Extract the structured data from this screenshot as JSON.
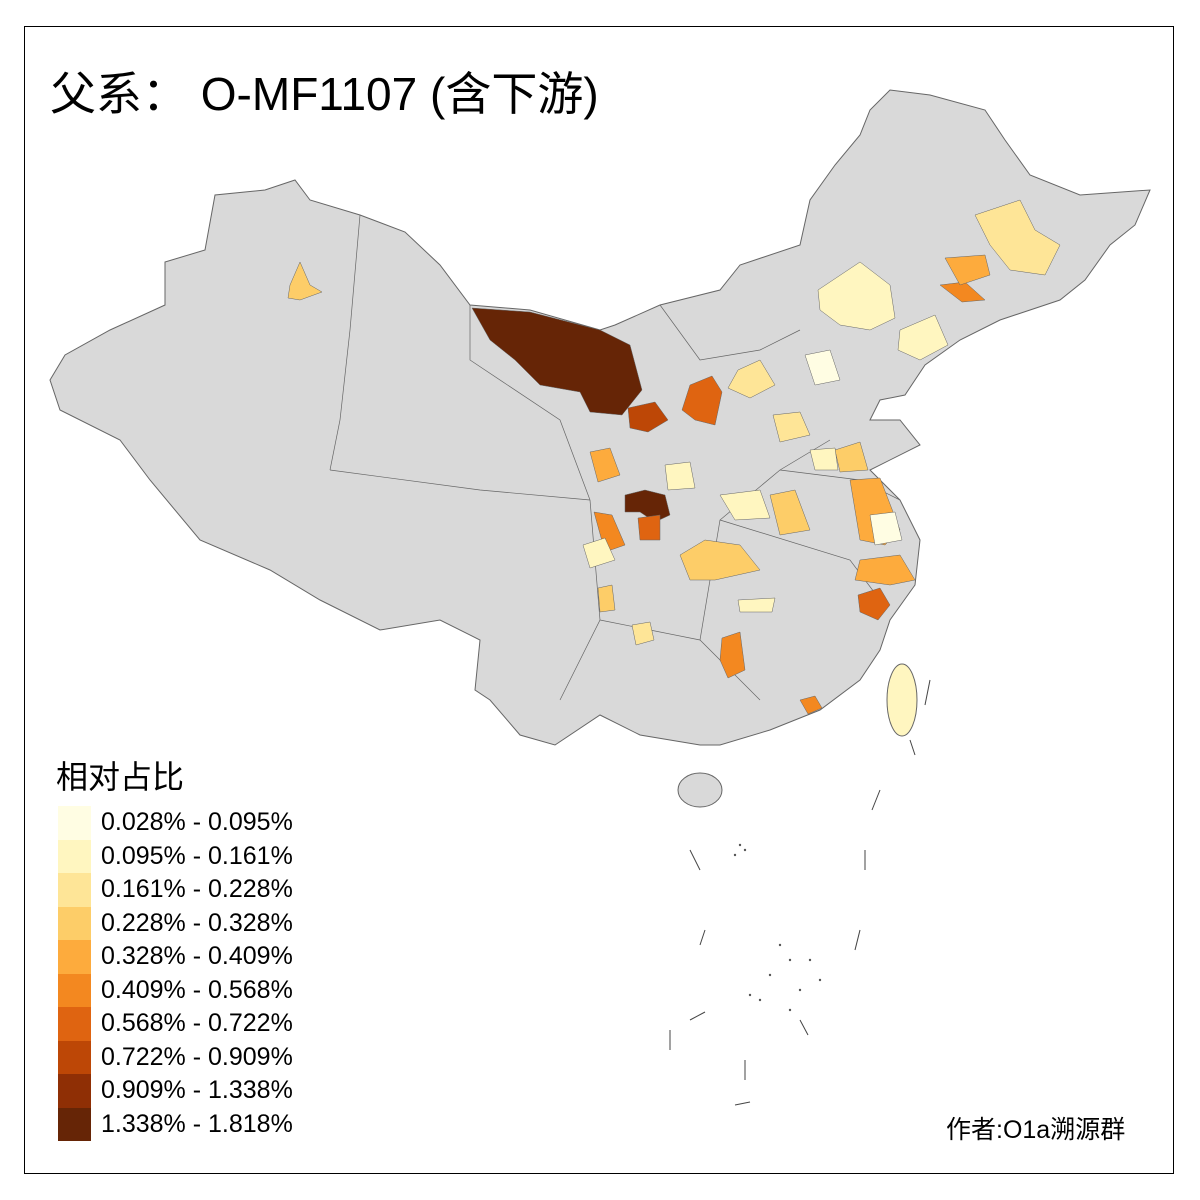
{
  "title": "父系： O-MF1107 (含下游)",
  "legend": {
    "title": "相对占比",
    "bins": [
      {
        "label": "0.028% - 0.095%",
        "color": "#fffde3"
      },
      {
        "label": "0.095% - 0.161%",
        "color": "#fff6c0"
      },
      {
        "label": "0.161% - 0.228%",
        "color": "#fee597"
      },
      {
        "label": "0.228% - 0.328%",
        "color": "#fdcd68"
      },
      {
        "label": "0.328% - 0.409%",
        "color": "#fdab3d"
      },
      {
        "label": "0.409% - 0.568%",
        "color": "#f38820"
      },
      {
        "label": "0.568% - 0.722%",
        "color": "#df6411"
      },
      {
        "label": "0.722% - 0.909%",
        "color": "#bd4706"
      },
      {
        "label": "0.909% - 1.338%",
        "color": "#8f2f05"
      },
      {
        "label": "1.338% - 1.818%",
        "color": "#662506"
      }
    ]
  },
  "map": {
    "base_color": "#d9d9d9",
    "border_color": "#666666"
  },
  "credit": "作者:O1a溯源群"
}
